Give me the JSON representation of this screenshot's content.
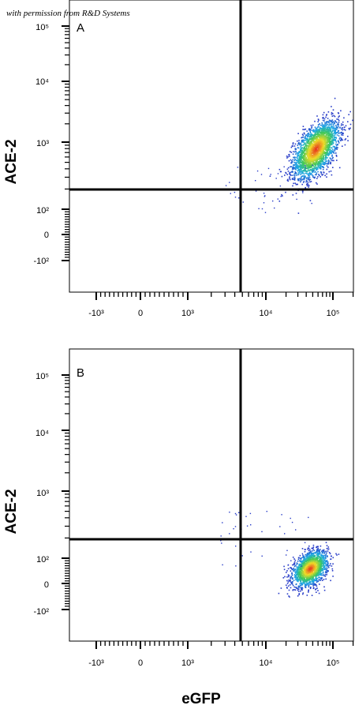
{
  "credit": "with permission from R&D Systems",
  "chart_data": [
    {
      "type": "scatter",
      "panel": "A",
      "xlabel": "",
      "ylabel": "ACE-2",
      "x_scale": "biexponential",
      "y_scale": "biexponential",
      "x_ticks": [
        "-10³",
        "0",
        "10³",
        "10⁴",
        "10⁵"
      ],
      "y_ticks": [
        "10⁵",
        "10⁴",
        "10³",
        "10²",
        "0",
        "-10²"
      ],
      "quadrant_gate": {
        "x": 5500,
        "y": 300
      },
      "populations": [
        {
          "name": "eGFP+ ACE-2+",
          "center_x": 55000,
          "center_y": 800,
          "spread_log_x": 0.17,
          "spread_log_y": 0.22,
          "events": 2600
        }
      ]
    },
    {
      "type": "scatter",
      "panel": "B",
      "xlabel": "eGFP",
      "ylabel": "ACE-2",
      "x_scale": "biexponential",
      "y_scale": "biexponential",
      "x_ticks": [
        "-10³",
        "0",
        "10³",
        "10⁴",
        "10⁵"
      ],
      "y_ticks": [
        "10⁵",
        "10⁴",
        "10³",
        "10²",
        "0",
        "-10²"
      ],
      "quadrant_gate": {
        "x": 5500,
        "y": 300
      },
      "populations": [
        {
          "name": "eGFP+ ACE-2-",
          "center_x": 45000,
          "center_y": 60,
          "spread_log_x": 0.13,
          "spread_y": 35,
          "events": 1800
        }
      ]
    }
  ]
}
